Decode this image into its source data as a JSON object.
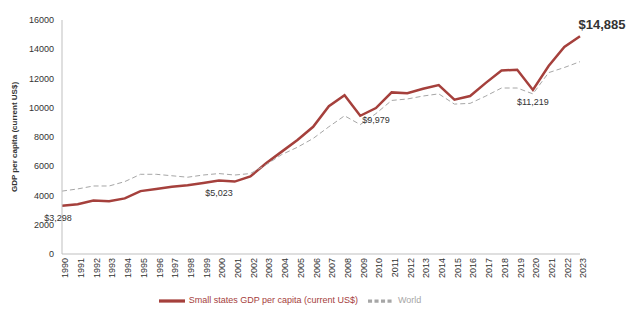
{
  "chart_data": {
    "type": "line",
    "y_label": "GDP per capita (current US$)",
    "categories": [
      "1990",
      "1991",
      "1992",
      "1993",
      "1994",
      "1995",
      "1996",
      "1997",
      "1998",
      "1999",
      "2000",
      "2001",
      "2002",
      "2003",
      "2004",
      "2005",
      "2006",
      "2007",
      "2008",
      "2009",
      "2010",
      "2011",
      "2012",
      "2013",
      "2014",
      "2015",
      "2016",
      "2017",
      "2018",
      "2019",
      "2020",
      "2021",
      "2022",
      "2023"
    ],
    "series": [
      {
        "name": "Small states GDP per capita (current US$)",
        "color": "#a5403c",
        "line_style": "solid",
        "values": [
          3298,
          3400,
          3650,
          3600,
          3800,
          4300,
          4450,
          4600,
          4700,
          4850,
          5023,
          4950,
          5300,
          6200,
          7000,
          7800,
          8700,
          10100,
          10850,
          9450,
          9979,
          11050,
          11000,
          11300,
          11550,
          10550,
          10800,
          11700,
          12550,
          12600,
          11219,
          12850,
          14150,
          14885
        ]
      },
      {
        "name": "World",
        "color": "#a6a6a6",
        "line_style": "dashed",
        "values": [
          4300,
          4450,
          4650,
          4650,
          4950,
          5450,
          5450,
          5350,
          5250,
          5400,
          5500,
          5400,
          5500,
          6100,
          6800,
          7300,
          7900,
          8700,
          9450,
          8850,
          9600,
          10500,
          10600,
          10800,
          10950,
          10250,
          10300,
          10800,
          11350,
          11350,
          10950,
          12400,
          12750,
          13150
        ]
      }
    ],
    "annotations": [
      {
        "x": "1990",
        "y": 3298,
        "text": "$3,298"
      },
      {
        "x": "2000",
        "y": 5023,
        "text": "$5,023"
      },
      {
        "x": "2010",
        "y": 9979,
        "text": "$9,979"
      },
      {
        "x": "2020",
        "y": 11219,
        "text": "$11,219"
      },
      {
        "x": "2023",
        "y": 14885,
        "text": "$14,885"
      }
    ],
    "ylim": [
      0,
      16000
    ],
    "yticks": [
      0,
      2000,
      4000,
      6000,
      8000,
      10000,
      12000,
      14000,
      16000
    ],
    "grid": false,
    "legend": "bottom"
  }
}
